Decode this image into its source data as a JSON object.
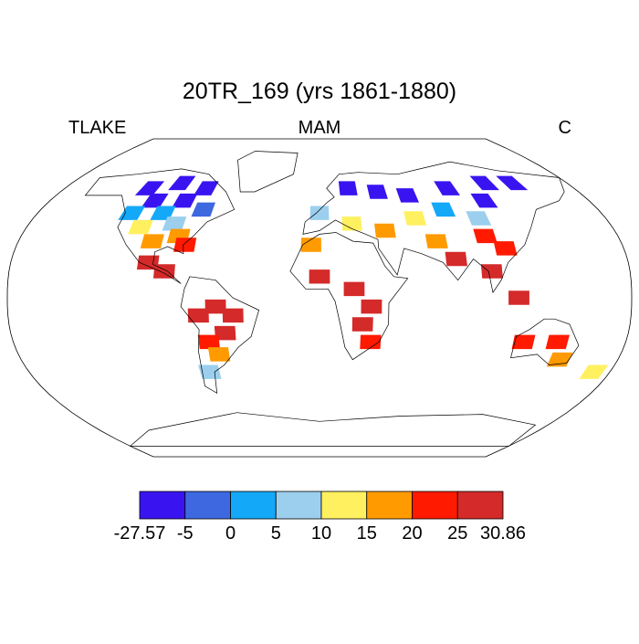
{
  "chart_data": {
    "type": "map",
    "title": "20TR_169 (yrs 1861-1880)",
    "left_label": "TLAKE",
    "center_label": "MAM",
    "right_label": "C",
    "cells": [
      {
        "lon": -100,
        "lat": 65,
        "value": -25
      },
      {
        "lon": -80,
        "lat": 62,
        "value": -22
      },
      {
        "lon": -120,
        "lat": 62,
        "value": -20
      },
      {
        "lon": -90,
        "lat": 55,
        "value": -8
      },
      {
        "lon": -110,
        "lat": 55,
        "value": -6
      },
      {
        "lon": -75,
        "lat": 50,
        "value": -3
      },
      {
        "lon": -100,
        "lat": 48,
        "value": 2
      },
      {
        "lon": -120,
        "lat": 48,
        "value": 3
      },
      {
        "lon": -90,
        "lat": 42,
        "value": 8
      },
      {
        "lon": -110,
        "lat": 40,
        "value": 12
      },
      {
        "lon": -85,
        "lat": 35,
        "value": 16
      },
      {
        "lon": -100,
        "lat": 32,
        "value": 18
      },
      {
        "lon": -80,
        "lat": 30,
        "value": 22
      },
      {
        "lon": -100,
        "lat": 20,
        "value": 26
      },
      {
        "lon": -90,
        "lat": 15,
        "value": 27
      },
      {
        "lon": -60,
        "lat": -5,
        "value": 28
      },
      {
        "lon": -70,
        "lat": -10,
        "value": 28
      },
      {
        "lon": -50,
        "lat": -10,
        "value": 27
      },
      {
        "lon": -55,
        "lat": -20,
        "value": 26
      },
      {
        "lon": -65,
        "lat": -25,
        "value": 22
      },
      {
        "lon": -60,
        "lat": -32,
        "value": 16
      },
      {
        "lon": -68,
        "lat": -42,
        "value": 8
      },
      {
        "lon": 20,
        "lat": 62,
        "value": -8
      },
      {
        "lon": 40,
        "lat": 60,
        "value": -10
      },
      {
        "lon": 60,
        "lat": 58,
        "value": -7
      },
      {
        "lon": 90,
        "lat": 62,
        "value": -12
      },
      {
        "lon": 120,
        "lat": 65,
        "value": -20
      },
      {
        "lon": 140,
        "lat": 65,
        "value": -22
      },
      {
        "lon": 110,
        "lat": 55,
        "value": -10
      },
      {
        "lon": 80,
        "lat": 50,
        "value": 2
      },
      {
        "lon": 60,
        "lat": 45,
        "value": 10
      },
      {
        "lon": 100,
        "lat": 45,
        "value": 5
      },
      {
        "lon": 0,
        "lat": 48,
        "value": 8
      },
      {
        "lon": 20,
        "lat": 42,
        "value": 14
      },
      {
        "lon": 40,
        "lat": 38,
        "value": 16
      },
      {
        "lon": 70,
        "lat": 32,
        "value": 18
      },
      {
        "lon": 100,
        "lat": 35,
        "value": 20
      },
      {
        "lon": 110,
        "lat": 28,
        "value": 22
      },
      {
        "lon": 80,
        "lat": 22,
        "value": 28
      },
      {
        "lon": 100,
        "lat": 15,
        "value": 28
      },
      {
        "lon": 115,
        "lat": 0,
        "value": 27
      },
      {
        "lon": 0,
        "lat": 12,
        "value": 27
      },
      {
        "lon": 20,
        "lat": 5,
        "value": 27
      },
      {
        "lon": 30,
        "lat": -5,
        "value": 26
      },
      {
        "lon": 25,
        "lat": -15,
        "value": 25
      },
      {
        "lon": 30,
        "lat": -25,
        "value": 20
      },
      {
        "lon": -5,
        "lat": 30,
        "value": 18
      },
      {
        "lon": 120,
        "lat": -25,
        "value": 24
      },
      {
        "lon": 140,
        "lat": -25,
        "value": 24
      },
      {
        "lon": 145,
        "lat": -35,
        "value": 16
      },
      {
        "lon": 170,
        "lat": -42,
        "value": 12
      }
    ],
    "colorbar": {
      "levels": [
        -27.57,
        -5,
        0,
        5,
        10,
        15,
        20,
        25,
        30.86
      ],
      "colors": [
        "#3a14f0",
        "#3e68e0",
        "#14a8f8",
        "#9ccfee",
        "#fff060",
        "#ff9a00",
        "#ff1a00",
        "#d42a2a"
      ]
    }
  }
}
